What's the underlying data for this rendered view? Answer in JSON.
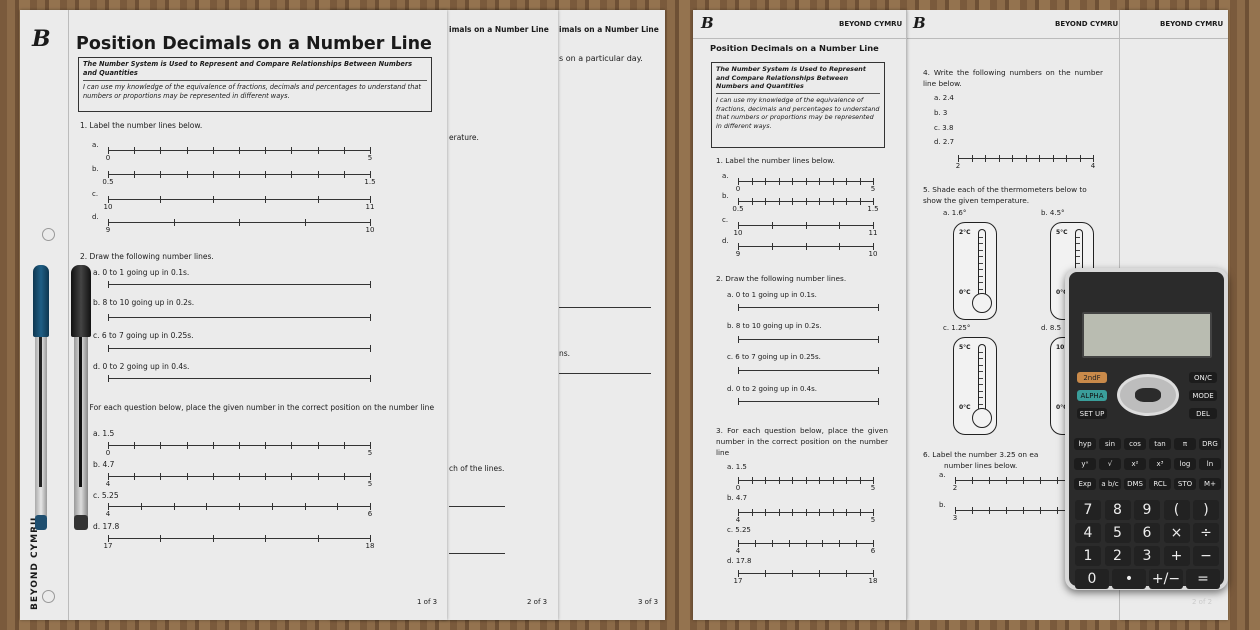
{
  "sheet3": {
    "title_fragment": "imals on a Number Line",
    "text1": "s on a particular day.",
    "text2": "ns.",
    "footer": "3 of 3"
  },
  "sheet2": {
    "title_fragment": "imals on a Number Line",
    "text1": "erature.",
    "text2": "ch of the lines.",
    "footer": "2 of 3"
  },
  "sheet1": {
    "title": "Position Decimals on a Number Line",
    "objective_heading": "The Number System is Used to Represent and Compare Relationships Between Numbers and Quantities",
    "objective_text": "I can use my knowledge of the equivalence of fractions, decimals and percentages to understand that numbers or proportions may be represented in different ways.",
    "brand_vertical": "BEYOND CYMRU",
    "q1": {
      "text": "1.  Label the number lines below.",
      "items": [
        {
          "letter": "a.",
          "start": "0",
          "end": "5",
          "intervals": 10
        },
        {
          "letter": "b.",
          "start": "0.5",
          "end": "1.5",
          "intervals": 10
        },
        {
          "letter": "c.",
          "start": "10",
          "end": "11",
          "intervals": 5
        },
        {
          "letter": "d.",
          "start": "9",
          "end": "10",
          "intervals": 4
        }
      ]
    },
    "q2": {
      "text": "2.  Draw the following number lines.",
      "items": [
        {
          "label": "a.  0 to 1 going up in 0.1s.",
          "intervals": 1
        },
        {
          "label": "b.  8 to 10 going up in 0.2s.",
          "intervals": 1
        },
        {
          "label": "c.  6 to 7 going up in 0.25s.",
          "intervals": 1
        },
        {
          "label": "d.  0 to 2 going up in 0.4s.",
          "intervals": 1
        }
      ]
    },
    "q3": {
      "text": "3.  For each question below, place the given number in the correct position on the number line",
      "items": [
        {
          "label": "a.  1.5",
          "start": "0",
          "end": "5",
          "intervals": 10
        },
        {
          "label": "b.  4.7",
          "start": "4",
          "end": "5",
          "intervals": 10
        },
        {
          "label": "c.  5.25",
          "start": "4",
          "end": "6",
          "intervals": 8
        },
        {
          "label": "d.  17.8",
          "start": "17",
          "end": "18",
          "intervals": 5
        }
      ]
    },
    "footer": "1 of 3"
  },
  "sheetA": {
    "brand": "BEYOND CYMRU",
    "title": "Position Decimals on a Number Line",
    "objective_heading": "The Number System is Used to Represent and Compare Relationships Between Numbers and Quantities",
    "objective_text": "I can use my knowledge of the equivalence of fractions, decimals and percentages to understand that numbers or proportions may be represented in different ways.",
    "q1": {
      "text": "1.  Label the number lines below.",
      "items": [
        {
          "letter": "a.",
          "start": "0",
          "end": "5",
          "intervals": 10
        },
        {
          "letter": "b.",
          "start": "0.5",
          "end": "1.5",
          "intervals": 10
        },
        {
          "letter": "c.",
          "start": "10",
          "end": "11",
          "intervals": 4
        },
        {
          "letter": "d.",
          "start": "9",
          "end": "10",
          "intervals": 4
        }
      ]
    },
    "q2": {
      "text": "2.  Draw the following number lines.",
      "items": [
        {
          "label": "a.  0 to 1 going up in 0.1s.",
          "intervals": 1
        },
        {
          "label": "b.  8 to 10 going up in 0.2s.",
          "intervals": 1
        },
        {
          "label": "c.  6 to 7 going up in 0.25s.",
          "intervals": 1
        },
        {
          "label": "d.  0 to 2 going up in 0.4s.",
          "intervals": 1
        }
      ]
    },
    "q3": {
      "text": "3.  For each question below, place the given number in the correct position on the number line",
      "items": [
        {
          "label": "a.  1.5",
          "start": "0",
          "end": "5",
          "intervals": 10
        },
        {
          "label": "b.  4.7",
          "start": "4",
          "end": "5",
          "intervals": 10
        },
        {
          "label": "c.  5.25",
          "start": "4",
          "end": "6",
          "intervals": 8
        },
        {
          "label": "d.  17.8",
          "start": "17",
          "end": "18",
          "intervals": 5
        }
      ]
    }
  },
  "sheetB": {
    "brand": "BEYOND CYMRU",
    "q4": {
      "text": "4.  Write the following numbers on the number line below.",
      "items": [
        "a.  2.4",
        "b.  3",
        "c.  3.8",
        "d.  2.7"
      ],
      "line": {
        "start": "2",
        "end": "4",
        "intervals": 10
      }
    },
    "q5": {
      "text": "5.  Shade each of the thermometers below to show the given temperature.",
      "items": [
        {
          "label": "a.  1.6°",
          "top": "2°C",
          "bottom": "0°C"
        },
        {
          "label": "b.  4.5°",
          "top": "5°C",
          "bottom": "0°C"
        },
        {
          "label": "c.  1.25°",
          "top": "5°C",
          "bottom": "0°C"
        },
        {
          "label": "d.  8.5",
          "top": "10°",
          "bottom": "0°C"
        }
      ]
    },
    "q6": {
      "text": "6.  Label the number 3.25 on ea",
      "text2": "number lines below.",
      "items": [
        {
          "letter": "a.",
          "start": "2",
          "end": "",
          "intervals": 10
        },
        {
          "letter": "b.",
          "start": "3",
          "end": "",
          "intervals": 10
        }
      ]
    }
  },
  "sheetC": {
    "brand": "BEYOND CYMRU",
    "footer": "2 of 2"
  },
  "calculator": {
    "top_keys": [
      "2ndF",
      "ALPHA",
      "SET UP",
      "ON/C",
      "MODE",
      "DEL"
    ],
    "rows": [
      [
        "hyp",
        "sin",
        "cos",
        "tan",
        "π",
        "DRG"
      ],
      [
        "yˣ",
        "√",
        "x²",
        "x³",
        "log",
        "ln"
      ],
      [
        "Exp",
        "a b/c",
        "DMS",
        "RCL",
        "STO",
        "M+"
      ]
    ],
    "num_rows": [
      [
        "7",
        "8",
        "9",
        "(",
        ")"
      ],
      [
        "4",
        "5",
        "6",
        "×",
        "÷"
      ],
      [
        "1",
        "2",
        "3",
        "+",
        "−"
      ],
      [
        "0",
        "•",
        "+/−",
        "="
      ]
    ]
  }
}
